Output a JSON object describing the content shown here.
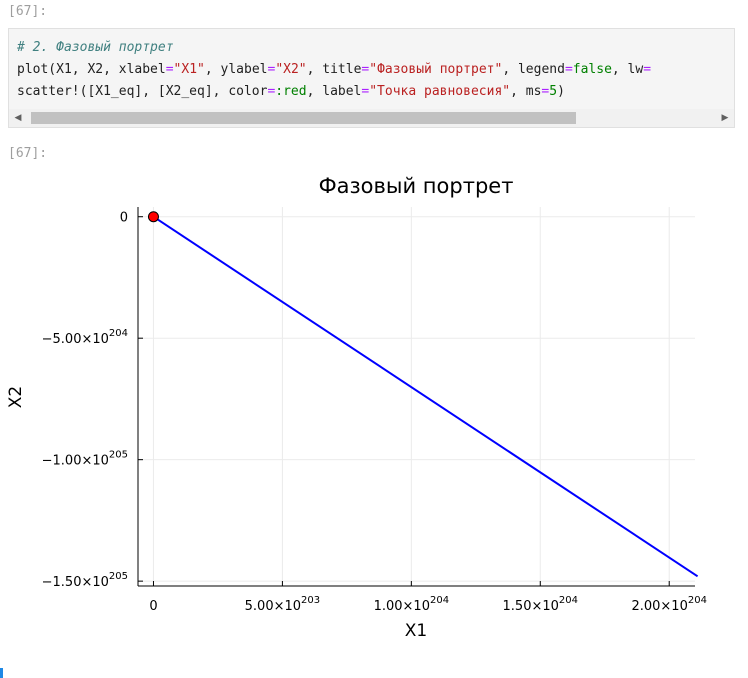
{
  "cell": {
    "input_prompt": "[67]:",
    "output_prompt": "[67]:",
    "code_lines": [
      [
        {
          "t": "# 2. Фазовый портрет",
          "c": "c-comment"
        }
      ],
      [
        {
          "t": "plot(X1, X2, xlabel",
          "c": ""
        },
        {
          "t": "=",
          "c": "c-op"
        },
        {
          "t": "\"X1\"",
          "c": "c-str"
        },
        {
          "t": ", ylabel",
          "c": ""
        },
        {
          "t": "=",
          "c": "c-op"
        },
        {
          "t": "\"X2\"",
          "c": "c-str"
        },
        {
          "t": ", title",
          "c": ""
        },
        {
          "t": "=",
          "c": "c-op"
        },
        {
          "t": "\"Фазовый портрет\"",
          "c": "c-str"
        },
        {
          "t": ", legend",
          "c": ""
        },
        {
          "t": "=",
          "c": "c-op"
        },
        {
          "t": "false",
          "c": "c-kw"
        },
        {
          "t": ", lw",
          "c": ""
        },
        {
          "t": "=",
          "c": "c-op"
        }
      ],
      [
        {
          "t": "scatter!([X1_eq], [X2_eq], color",
          "c": ""
        },
        {
          "t": "=",
          "c": "c-op"
        },
        {
          "t": ":red",
          "c": "c-kw"
        },
        {
          "t": ", label",
          "c": ""
        },
        {
          "t": "=",
          "c": "c-op"
        },
        {
          "t": "\"Точка равновесия\"",
          "c": "c-str"
        },
        {
          "t": ", ms",
          "c": ""
        },
        {
          "t": "=",
          "c": "c-op"
        },
        {
          "t": "5",
          "c": "c-kw"
        },
        {
          "t": ")",
          "c": ""
        }
      ]
    ],
    "scroll": {
      "left_icon": "◀",
      "right_icon": "▶",
      "position": 0.0,
      "visible_fraction": 0.8
    }
  },
  "chart_data": {
    "type": "line",
    "title": "Фазовый портрет",
    "xlabel": "X1",
    "ylabel": "X2",
    "legend": false,
    "grid": true,
    "xlim": [
      -6e+202,
      2.1e+204
    ],
    "ylim": [
      -1.52e+205,
      4e+203
    ],
    "x_ticks": [
      {
        "value": 0,
        "mant": "0",
        "exp": ""
      },
      {
        "value": 5e+203,
        "mant": "5.00×10",
        "exp": "203"
      },
      {
        "value": 1e+204,
        "mant": "1.00×10",
        "exp": "204"
      },
      {
        "value": 1.5e+204,
        "mant": "1.50×10",
        "exp": "204"
      },
      {
        "value": 2e+204,
        "mant": "2.00×10",
        "exp": "204"
      }
    ],
    "y_ticks": [
      {
        "value": 0,
        "mant": "0",
        "exp": ""
      },
      {
        "value": -5e+204,
        "mant": "−5.00×10",
        "exp": "204"
      },
      {
        "value": -1e+205,
        "mant": "−1.00×10",
        "exp": "205"
      },
      {
        "value": -1.5e+205,
        "mant": "−1.50×10",
        "exp": "205"
      }
    ],
    "series": [
      {
        "x": [
          0,
          2.11e+204
        ],
        "y": [
          0,
          -1.48e+205
        ],
        "color": "#0000ff"
      }
    ],
    "points": [
      {
        "x": 0,
        "y": 0,
        "color": "#ff0000"
      }
    ]
  }
}
